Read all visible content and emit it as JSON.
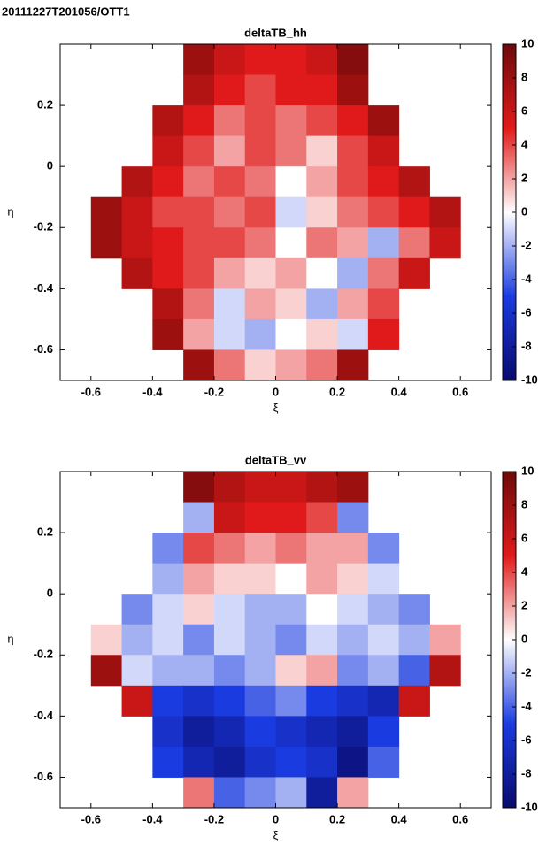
{
  "title": "20111227T201056/OTT1",
  "chart_data": [
    {
      "type": "heatmap",
      "title": "deltaTB_hh",
      "xlabel": "ξ",
      "ylabel": "η",
      "x": [
        -0.65,
        -0.55,
        -0.45,
        -0.35,
        -0.25,
        -0.15,
        -0.05,
        0.05,
        0.15,
        0.25,
        0.35,
        0.45,
        0.55,
        0.65
      ],
      "y": [
        0.35,
        0.25,
        0.15,
        0.05,
        -0.05,
        -0.15,
        -0.25,
        -0.35,
        -0.45,
        -0.55,
        -0.65
      ],
      "values": [
        [
          null,
          null,
          null,
          null,
          8,
          6,
          5,
          5,
          6,
          9,
          null,
          null,
          null,
          null
        ],
        [
          null,
          null,
          null,
          null,
          7,
          5,
          4,
          5,
          5,
          8,
          null,
          null,
          null,
          null
        ],
        [
          null,
          null,
          null,
          7,
          5,
          3,
          4,
          3,
          4,
          5,
          8,
          null,
          null,
          null
        ],
        [
          null,
          null,
          null,
          6,
          4,
          2,
          4,
          3,
          1,
          4,
          6,
          null,
          null,
          null
        ],
        [
          null,
          null,
          7,
          5,
          3,
          4,
          3,
          0,
          2,
          4,
          5,
          7,
          null,
          null
        ],
        [
          null,
          8,
          6,
          4,
          4,
          3,
          4,
          -1,
          1,
          3,
          4,
          5,
          7,
          null
        ],
        [
          null,
          8,
          6,
          5,
          4,
          4,
          3,
          0,
          3,
          2,
          -2,
          3,
          6,
          null
        ],
        [
          null,
          null,
          7,
          5,
          4,
          2,
          1,
          2,
          0,
          -2,
          3,
          6,
          null,
          null
        ],
        [
          null,
          null,
          null,
          7,
          3,
          -1,
          2,
          1,
          -2,
          2,
          4,
          null,
          null,
          null
        ],
        [
          null,
          null,
          null,
          8,
          2,
          -1,
          -2,
          0,
          1,
          -1,
          5,
          null,
          null,
          null
        ],
        [
          null,
          null,
          null,
          null,
          8,
          3,
          1,
          2,
          3,
          8,
          null,
          null,
          null,
          null
        ]
      ],
      "xlim": [
        -0.7,
        0.7
      ],
      "ylim": [
        -0.7,
        0.4
      ],
      "xticks": [
        -0.6,
        -0.4,
        -0.2,
        0,
        0.2,
        0.4,
        0.6
      ],
      "yticks": [
        -0.6,
        -0.4,
        -0.2,
        0,
        0.2
      ],
      "clim": [
        -10,
        10
      ],
      "cticks": [
        -10,
        -8,
        -6,
        -4,
        -2,
        0,
        2,
        4,
        6,
        8,
        10
      ],
      "colormap": [
        "#0a0a6e",
        "#1a3be0",
        "#ffffff",
        "#e01a1a",
        "#6e0a0a"
      ]
    },
    {
      "type": "heatmap",
      "title": "deltaTB_vv",
      "xlabel": "ξ",
      "ylabel": "η",
      "x": [
        -0.65,
        -0.55,
        -0.45,
        -0.35,
        -0.25,
        -0.15,
        -0.05,
        0.05,
        0.15,
        0.25,
        0.35,
        0.45,
        0.55,
        0.65
      ],
      "y": [
        0.35,
        0.25,
        0.15,
        0.05,
        -0.05,
        -0.15,
        -0.25,
        -0.35,
        -0.45,
        -0.55,
        -0.65
      ],
      "values": [
        [
          null,
          null,
          null,
          null,
          9,
          7,
          6,
          6,
          7,
          8,
          null,
          null,
          null,
          null
        ],
        [
          null,
          null,
          null,
          null,
          -2,
          6,
          5,
          5,
          4,
          -3,
          null,
          null,
          null,
          null
        ],
        [
          null,
          null,
          null,
          -3,
          4,
          3,
          2,
          3,
          2,
          2,
          -3,
          null,
          null,
          null
        ],
        [
          null,
          null,
          null,
          -2,
          2,
          1,
          1,
          0,
          2,
          1,
          -1,
          null,
          null,
          null
        ],
        [
          null,
          null,
          -3,
          -1,
          1,
          -1,
          -2,
          -2,
          0,
          -1,
          -2,
          -3,
          null,
          null
        ],
        [
          null,
          1,
          -2,
          -1,
          -3,
          -1,
          -2,
          -3,
          -1,
          -2,
          -1,
          -2,
          2,
          null
        ],
        [
          null,
          8,
          -1,
          -2,
          -2,
          -3,
          -2,
          1,
          2,
          -3,
          -2,
          -4,
          7,
          null
        ],
        [
          null,
          null,
          6,
          -5,
          -6,
          -5,
          -4,
          -3,
          -5,
          -6,
          -7,
          6,
          null,
          null
        ],
        [
          null,
          null,
          null,
          -6,
          -8,
          -7,
          -5,
          -6,
          -7,
          -8,
          -5,
          null,
          null,
          null
        ],
        [
          null,
          null,
          null,
          -5,
          -7,
          -8,
          -6,
          -5,
          -6,
          -9,
          -4,
          null,
          null,
          null
        ],
        [
          null,
          null,
          null,
          null,
          3,
          -4,
          -3,
          -2,
          -8,
          2,
          null,
          null,
          null,
          null
        ]
      ],
      "xlim": [
        -0.7,
        0.7
      ],
      "ylim": [
        -0.7,
        0.4
      ],
      "xticks": [
        -0.6,
        -0.4,
        -0.2,
        0,
        0.2,
        0.4,
        0.6
      ],
      "yticks": [
        -0.6,
        -0.4,
        -0.2,
        0,
        0.2
      ],
      "clim": [
        -10,
        10
      ],
      "cticks": [
        -10,
        -8,
        -6,
        -4,
        -2,
        0,
        2,
        4,
        6,
        8,
        10
      ],
      "colormap": [
        "#0a0a6e",
        "#1a3be0",
        "#ffffff",
        "#e01a1a",
        "#6e0a0a"
      ]
    }
  ]
}
